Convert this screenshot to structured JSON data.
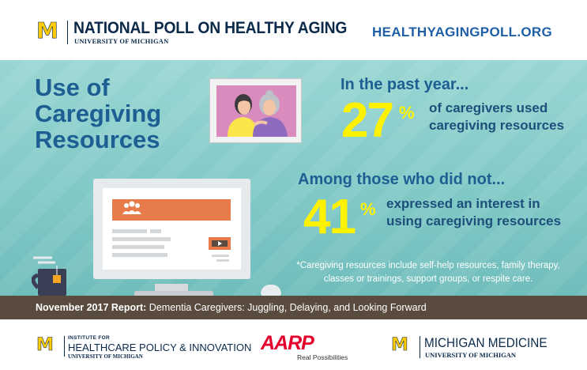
{
  "header": {
    "logo_letter": "M",
    "title": "NATIONAL POLL ON HEALTHY AGING",
    "subtitle": "UNIVERSITY OF MICHIGAN",
    "website": "HEALTHYAGINGPOLL.ORG"
  },
  "main": {
    "title_lines": [
      "Use of",
      "Caregiving",
      "Resources"
    ],
    "stat1": {
      "lead": "In the past year...",
      "value": "27",
      "unit": "%",
      "desc_lines": [
        "of caregivers used",
        "caregiving resources"
      ]
    },
    "stat2": {
      "lead": "Among those who did not...",
      "value": "41",
      "unit": "%",
      "desc_lines": [
        "expressed an interest in",
        "using caregiving resources"
      ]
    },
    "footnote": "*Caregiving resources include self-help resources, family therapy, classes or trainings, support groups, or respite care."
  },
  "report": {
    "label": "November 2017 Report:",
    "text": " Dementia Caregivers: Juggling, Delaying, and Looking Forward"
  },
  "footer": {
    "ihpi": {
      "logo_letter": "M",
      "line1": "INSTITUTE FOR",
      "line2": "HEALTHCARE POLICY & INNOVATION",
      "line3": "UNIVERSITY OF MICHIGAN"
    },
    "aarp": {
      "name": "AARP",
      "tagline": "Real Possibilities"
    },
    "michigan_medicine": {
      "logo_letter": "M",
      "line1": "MICHIGAN MEDICINE",
      "line2": "UNIVERSITY OF MICHIGAN"
    }
  },
  "colors": {
    "teal_background": "#7fc8c6",
    "title_blue": "#1d5f93",
    "highlight_yellow": "#fff200",
    "report_bar": "#5a4b3f",
    "maize": "#ffcb05",
    "navy": "#0b2a4a",
    "aarp_red": "#e4002b"
  },
  "icons": [
    "university-block-m-logo",
    "framed-photo-illustration",
    "computer-monitor-illustration",
    "tea-mug-illustration",
    "computer-mouse-illustration",
    "play-icon",
    "group-icon"
  ]
}
